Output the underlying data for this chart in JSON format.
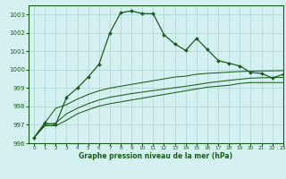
{
  "title": "Graphe pression niveau de la mer (hPa)",
  "bg_color": "#d4f0f0",
  "grid_color": "#b0d8d8",
  "line_color": "#1a5c1a",
  "xlim": [
    -0.5,
    23
  ],
  "ylim": [
    996,
    1003.5
  ],
  "yticks": [
    996,
    997,
    998,
    999,
    1000,
    1001,
    1002,
    1003
  ],
  "xticks": [
    0,
    1,
    2,
    3,
    4,
    5,
    6,
    7,
    8,
    9,
    10,
    11,
    12,
    13,
    14,
    15,
    16,
    17,
    18,
    19,
    20,
    21,
    22,
    23
  ],
  "series": [
    [
      996.3,
      997.1,
      997.0,
      998.5,
      999.0,
      999.6,
      1000.3,
      1002.0,
      1003.1,
      1003.2,
      1003.05,
      1003.05,
      1001.9,
      1001.4,
      1001.05,
      1001.7,
      1001.1,
      1000.5,
      1000.35,
      1000.2,
      999.85,
      999.8,
      999.55,
      999.75
    ],
    [
      996.3,
      997.1,
      997.9,
      998.1,
      998.4,
      998.65,
      998.85,
      999.0,
      999.1,
      999.2,
      999.3,
      999.4,
      999.5,
      999.6,
      999.65,
      999.75,
      999.8,
      999.83,
      999.87,
      999.9,
      999.92,
      999.93,
      999.94,
      999.95
    ],
    [
      996.3,
      997.0,
      997.1,
      997.6,
      997.9,
      998.15,
      998.35,
      998.5,
      998.6,
      998.7,
      998.78,
      998.86,
      998.94,
      999.02,
      999.1,
      999.18,
      999.28,
      999.35,
      999.42,
      999.48,
      999.54,
      999.56,
      999.57,
      999.58
    ],
    [
      996.3,
      996.95,
      996.95,
      997.25,
      997.6,
      997.82,
      998.02,
      998.15,
      998.25,
      998.35,
      998.45,
      998.55,
      998.65,
      998.75,
      998.85,
      998.95,
      999.05,
      999.1,
      999.15,
      999.25,
      999.3,
      999.3,
      999.3,
      999.3
    ]
  ]
}
